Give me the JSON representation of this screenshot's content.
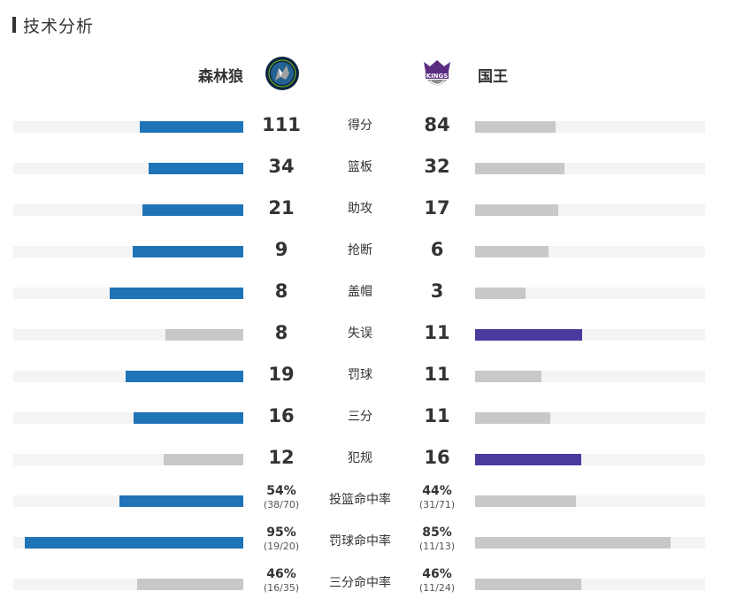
{
  "section_title": "技术分析",
  "home": {
    "name": "森林狼",
    "logo_icon": "timberwolves-logo-icon",
    "color": "#1f73b7"
  },
  "away": {
    "name": "国王",
    "logo_icon": "kings-logo-icon",
    "color": "#4b3a9e"
  },
  "neutral_color": "#c8c8c8",
  "stats": [
    {
      "label": "得分",
      "home": "111",
      "away": "84",
      "home_pct": 0.45,
      "away_pct": 0.35,
      "leader": "home"
    },
    {
      "label": "篮板",
      "home": "34",
      "away": "32",
      "home_pct": 0.41,
      "away_pct": 0.39,
      "leader": "home"
    },
    {
      "label": "助攻",
      "home": "21",
      "away": "17",
      "home_pct": 0.44,
      "away_pct": 0.36,
      "leader": "home"
    },
    {
      "label": "抢断",
      "home": "9",
      "away": "6",
      "home_pct": 0.48,
      "away_pct": 0.32,
      "leader": "home"
    },
    {
      "label": "盖帽",
      "home": "8",
      "away": "3",
      "home_pct": 0.58,
      "away_pct": 0.22,
      "leader": "home"
    },
    {
      "label": "失误",
      "home": "8",
      "away": "11",
      "home_pct": 0.34,
      "away_pct": 0.465,
      "leader": "away"
    },
    {
      "label": "罚球",
      "home": "19",
      "away": "11",
      "home_pct": 0.51,
      "away_pct": 0.29,
      "leader": "home"
    },
    {
      "label": "三分",
      "home": "16",
      "away": "11",
      "home_pct": 0.475,
      "away_pct": 0.325,
      "leader": "home"
    },
    {
      "label": "犯规",
      "home": "12",
      "away": "16",
      "home_pct": 0.345,
      "away_pct": 0.46,
      "leader": "away"
    },
    {
      "label": "投篮命中率",
      "home": "54%",
      "home_sub": "(38/70)",
      "away": "44%",
      "away_sub": "(31/71)",
      "home_pct": 0.54,
      "away_pct": 0.44,
      "leader": "home"
    },
    {
      "label": "罚球命中率",
      "home": "95%",
      "home_sub": "(19/20)",
      "away": "85%",
      "away_sub": "(11/13)",
      "home_pct": 0.95,
      "away_pct": 0.85,
      "leader": "home"
    },
    {
      "label": "三分命中率",
      "home": "46%",
      "home_sub": "(16/35)",
      "away": "46%",
      "away_sub": "(11/24)",
      "home_pct": 0.46,
      "away_pct": 0.46,
      "leader": "none"
    }
  ]
}
